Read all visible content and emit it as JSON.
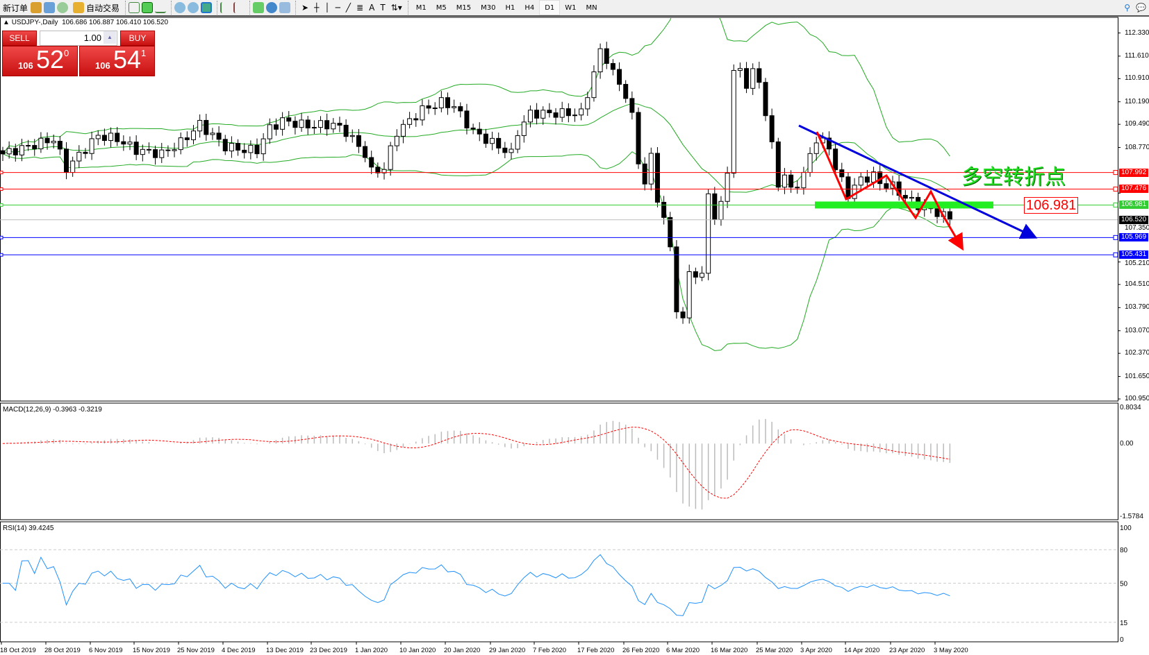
{
  "toolbar": {
    "new_order": "新订单",
    "auto_trading": "自动交易",
    "icons": [
      "experts-icon",
      "history-icon",
      "signals-icon",
      "bar-chart-icon",
      "candlestick-icon",
      "line-chart-icon",
      "zoom-in-icon",
      "zoom-out-icon",
      "tile-windows-icon",
      "autoscroll-icon",
      "chart-shift-icon",
      "indicators-icon",
      "periods-icon",
      "templates-icon",
      "cursor-icon",
      "crosshair-icon",
      "vertical-line-icon",
      "horizontal-line-icon",
      "trendline-icon",
      "fibonacci-icon",
      "text-icon",
      "text-label-icon",
      "arrows-icon"
    ],
    "timeframes": [
      "M1",
      "M5",
      "M15",
      "M30",
      "H1",
      "H4",
      "D1",
      "W1",
      "MN"
    ],
    "active_timeframe": "D1"
  },
  "chart_header": {
    "symbol": "USDJPY-,Daily",
    "ohlc": "106.686 106.887 106.410 106.520"
  },
  "trade_panel": {
    "sell_label": "SELL",
    "buy_label": "BUY",
    "lot": "1.00",
    "sell_big": "106",
    "sell_pips": "52",
    "sell_frac": "0",
    "buy_big": "106",
    "buy_pips": "54",
    "buy_frac": "1"
  },
  "annotation": {
    "text": "多空转折点",
    "price_box": "106.981"
  },
  "price_axis": [
    "112.330",
    "111.610",
    "110.910",
    "110.190",
    "109.490",
    "108.770",
    "107.350",
    "105.210",
    "104.510",
    "103.790",
    "103.070",
    "102.370",
    "101.650",
    "100.950"
  ],
  "hlines": [
    {
      "value": "107.992",
      "color": "#ff0000"
    },
    {
      "value": "107.476",
      "color": "#ff0000"
    },
    {
      "value": "106.981",
      "color": "#33cc33"
    },
    {
      "value": "106.520",
      "color": "#000000"
    },
    {
      "value": "105.969",
      "color": "#0000ff"
    },
    {
      "value": "105.431",
      "color": "#0000ff"
    }
  ],
  "macd": {
    "label": "MACD(12,26,9) -0.3963 -0.3219",
    "max": "0.8034",
    "zero": "0.00",
    "min": "-1.5784"
  },
  "rsi": {
    "label": "RSI(14) 39.4245",
    "levels": [
      "100",
      "80",
      "50",
      "15",
      "0"
    ]
  },
  "dates": [
    "18 Oct 2019",
    "28 Oct 2019",
    "6 Nov 2019",
    "15 Nov 2019",
    "25 Nov 2019",
    "4 Dec 2019",
    "13 Dec 2019",
    "23 Dec 2019",
    "1 Jan 2020",
    "10 Jan 2020",
    "20 Jan 2020",
    "29 Jan 2020",
    "7 Feb 2020",
    "17 Feb 2020",
    "26 Feb 2020",
    "6 Mar 2020",
    "16 Mar 2020",
    "25 Mar 2020",
    "3 Apr 2020",
    "14 Apr 2020",
    "23 Apr 2020",
    "3 May 2020"
  ],
  "chart_data": {
    "type": "candlestick",
    "symbol": "USDJPY",
    "timeframe": "Daily",
    "ylim": [
      100.95,
      112.33
    ],
    "close_path_bar_price": [
      [
        0,
        108.57
      ],
      [
        8,
        109.03
      ],
      [
        10,
        108.12
      ],
      [
        15,
        109.14
      ],
      [
        18,
        109.03
      ],
      [
        21,
        108.69
      ],
      [
        25,
        108.57
      ],
      [
        28,
        108.92
      ],
      [
        31,
        109.49
      ],
      [
        35,
        108.8
      ],
      [
        38,
        108.69
      ],
      [
        40,
        108.69
      ],
      [
        42,
        109.37
      ],
      [
        44,
        109.6
      ],
      [
        48,
        109.44
      ],
      [
        52,
        109.49
      ],
      [
        54,
        109.26
      ],
      [
        57,
        108.57
      ],
      [
        58,
        108.01
      ],
      [
        60,
        108.12
      ],
      [
        62,
        109.26
      ],
      [
        66,
        109.94
      ],
      [
        69,
        110.17
      ],
      [
        71,
        110.05
      ],
      [
        74,
        109.26
      ],
      [
        76,
        109.03
      ],
      [
        80,
        108.57
      ],
      [
        81,
        109.26
      ],
      [
        83,
        109.83
      ],
      [
        91,
        109.83
      ],
      [
        93,
        111.08
      ],
      [
        94,
        111.76
      ],
      [
        95,
        111.53
      ],
      [
        96,
        111.08
      ],
      [
        98,
        110.4
      ],
      [
        99,
        109.71
      ],
      [
        100,
        108.35
      ],
      [
        101,
        107.66
      ],
      [
        102,
        108.46
      ],
      [
        103,
        107.21
      ],
      [
        104,
        106.53
      ],
      [
        105,
        105.62
      ],
      [
        106,
        103.8
      ],
      [
        107,
        103.34
      ],
      [
        108,
        104.94
      ],
      [
        110,
        104.71
      ],
      [
        111,
        107.44
      ],
      [
        112,
        106.53
      ],
      [
        113,
        106.98
      ],
      [
        114,
        108.12
      ],
      [
        115,
        111.08
      ],
      [
        116,
        111.19
      ],
      [
        117,
        110.74
      ],
      [
        118,
        111.08
      ],
      [
        119,
        110.85
      ],
      [
        121,
        108.8
      ],
      [
        122,
        107.66
      ],
      [
        123,
        107.89
      ],
      [
        124,
        107.44
      ],
      [
        126,
        107.89
      ],
      [
        127,
        108.57
      ],
      [
        128,
        109.03
      ],
      [
        130,
        108.8
      ],
      [
        131,
        108.12
      ],
      [
        133,
        107.32
      ],
      [
        135,
        107.78
      ],
      [
        137,
        107.89
      ],
      [
        138,
        107.66
      ],
      [
        140,
        107.55
      ],
      [
        142,
        107.21
      ],
      [
        144,
        106.98
      ],
      [
        145,
        106.87
      ],
      [
        147,
        106.76
      ],
      [
        149,
        106.52
      ]
    ],
    "indicators": [
      "Bollinger Bands(20,2)",
      "MACD(12,26,9)",
      "RSI(14)"
    ],
    "colors": {
      "bands": "#22aa22",
      "macd_signal": "#ff0000",
      "macd_hist": "#bbbbbb",
      "rsi": "#1e90ff",
      "trendline": "#0000dd",
      "zigzag": "#ff0000"
    }
  }
}
